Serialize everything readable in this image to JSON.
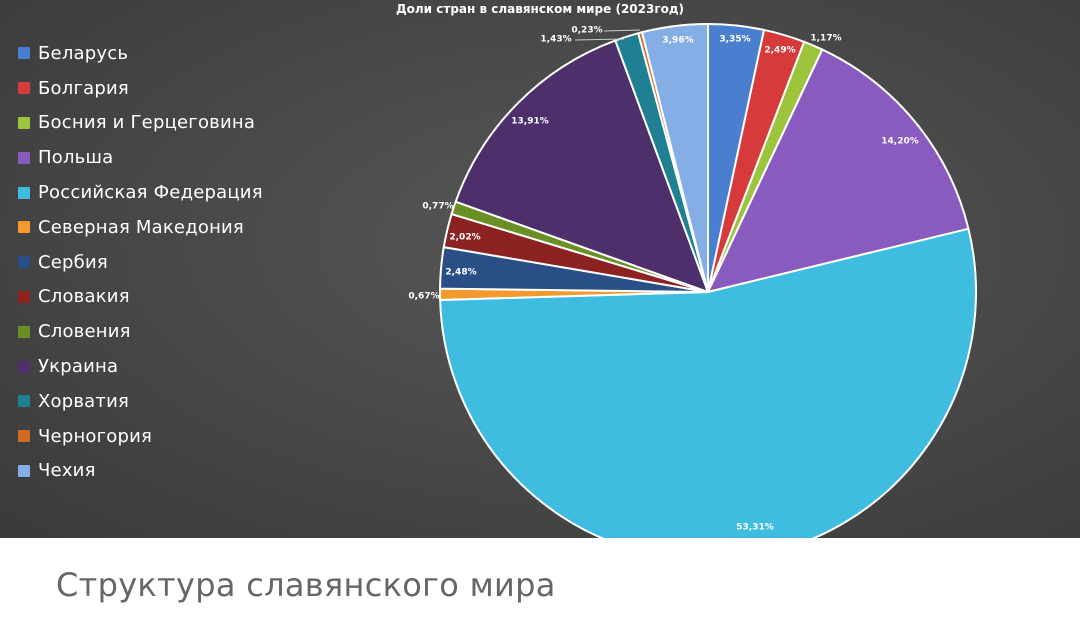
{
  "caption": "Структура славянского мира",
  "chart_data": {
    "type": "pie",
    "title": "Доли стран в славянском мире (2023год)",
    "legend_position": "left",
    "slices": [
      {
        "name": "Беларусь",
        "value": 3.35,
        "label": "3,35%",
        "color": "#4a7fd0"
      },
      {
        "name": "Болгария",
        "value": 2.49,
        "label": "2,49%",
        "color": "#d63a3a"
      },
      {
        "name": "Босния и Герцеговина",
        "value": 1.17,
        "label": "1,17%",
        "color": "#9dc43c"
      },
      {
        "name": "Польша",
        "value": 14.2,
        "label": "14,20%",
        "color": "#8a5bbf"
      },
      {
        "name": "Российская Федерация",
        "value": 53.31,
        "label": "53,31%",
        "color": "#3fbde0"
      },
      {
        "name": "Северная Македония",
        "value": 0.67,
        "label": "0,67%",
        "color": "#f29a2e"
      },
      {
        "name": "Сербия",
        "value": 2.48,
        "label": "2,48%",
        "color": "#2a4e86"
      },
      {
        "name": "Словакия",
        "value": 2.02,
        "label": "2,02%",
        "color": "#8c2222"
      },
      {
        "name": "Словения",
        "value": 0.77,
        "label": "0,77%",
        "color": "#6a8f24"
      },
      {
        "name": "Украина",
        "value": 13.91,
        "label": "13,91%",
        "color": "#4d2f6b"
      },
      {
        "name": "Хорватия",
        "value": 1.43,
        "label": "1,43%",
        "color": "#1f7f93"
      },
      {
        "name": "Черногория",
        "value": 0.23,
        "label": "0,23%",
        "color": "#d06a1f"
      },
      {
        "name": "Чехия",
        "value": 3.96,
        "label": "3,96%",
        "color": "#86aee6"
      }
    ]
  }
}
